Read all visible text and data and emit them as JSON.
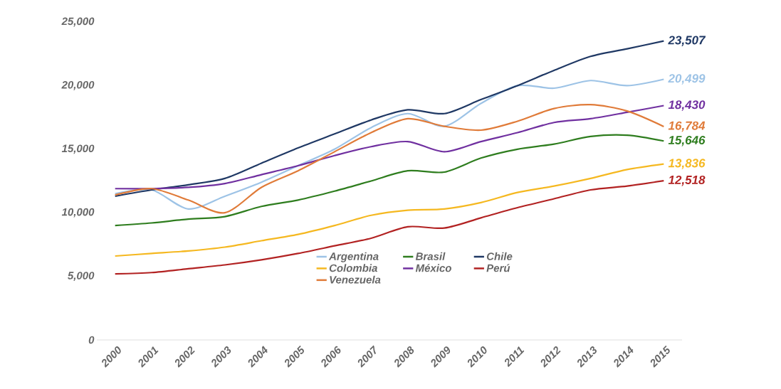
{
  "chart_data": {
    "type": "line",
    "categories": [
      "2000",
      "2001",
      "2002",
      "2003",
      "2004",
      "2005",
      "2006",
      "2007",
      "2008",
      "2009",
      "2010",
      "2011",
      "2012",
      "2013",
      "2014",
      "2015"
    ],
    "series": [
      {
        "name": "Argentina",
        "color": "#9dc3e6",
        "values": [
          11500,
          11800,
          10300,
          11300,
          12400,
          13700,
          15000,
          16700,
          17800,
          16800,
          18600,
          20000,
          19800,
          20400,
          20000,
          20499
        ],
        "value_labels": [
          null,
          null,
          null,
          null,
          null,
          null,
          null,
          null,
          null,
          null,
          null,
          null,
          null,
          null,
          null,
          "20,499"
        ]
      },
      {
        "name": "Brasil",
        "color": "#2e7d1e",
        "values": [
          9000,
          9200,
          9500,
          9700,
          10500,
          11000,
          11700,
          12500,
          13300,
          13200,
          14300,
          15000,
          15400,
          16000,
          16100,
          15646
        ],
        "value_labels": [
          null,
          null,
          null,
          null,
          null,
          null,
          null,
          null,
          null,
          null,
          null,
          null,
          null,
          null,
          null,
          "15,646"
        ]
      },
      {
        "name": "Chile",
        "color": "#1f3864",
        "values": [
          11300,
          11800,
          12200,
          12700,
          13900,
          15100,
          16200,
          17300,
          18100,
          17800,
          18900,
          20000,
          21200,
          22300,
          22900,
          23507
        ],
        "value_labels": [
          null,
          null,
          null,
          null,
          null,
          null,
          null,
          null,
          null,
          null,
          null,
          null,
          null,
          null,
          null,
          "23,507"
        ]
      },
      {
        "name": "Colombia",
        "color": "#f5b820",
        "values": [
          6600,
          6800,
          7000,
          7300,
          7800,
          8300,
          9000,
          9800,
          10200,
          10300,
          10800,
          11600,
          12100,
          12700,
          13400,
          13836
        ],
        "value_labels": [
          null,
          null,
          null,
          null,
          null,
          null,
          null,
          null,
          null,
          null,
          null,
          null,
          null,
          null,
          null,
          "13,836"
        ]
      },
      {
        "name": "México",
        "color": "#7030a0",
        "values": [
          11900,
          11900,
          12000,
          12300,
          13000,
          13700,
          14500,
          15200,
          15600,
          14800,
          15600,
          16300,
          17100,
          17400,
          17900,
          18430
        ],
        "value_labels": [
          null,
          null,
          null,
          null,
          null,
          null,
          null,
          null,
          null,
          null,
          null,
          null,
          null,
          null,
          null,
          "18,430"
        ]
      },
      {
        "name": "Perú",
        "color": "#b22222",
        "values": [
          5200,
          5300,
          5600,
          5900,
          6300,
          6800,
          7400,
          8000,
          8900,
          8800,
          9600,
          10400,
          11100,
          11800,
          12100,
          12518
        ],
        "value_labels": [
          null,
          null,
          null,
          null,
          null,
          null,
          null,
          null,
          null,
          null,
          null,
          null,
          null,
          null,
          null,
          "12,518"
        ]
      },
      {
        "name": "Venezuela",
        "color": "#e07b39",
        "values": [
          11400,
          11900,
          11000,
          10000,
          12000,
          13300,
          14800,
          16300,
          17400,
          16800,
          16500,
          17200,
          18200,
          18500,
          18000,
          16784
        ],
        "value_labels": [
          null,
          null,
          null,
          null,
          null,
          null,
          null,
          null,
          null,
          null,
          null,
          null,
          null,
          null,
          null,
          "16,784"
        ]
      }
    ],
    "ylim": [
      0,
      25000
    ],
    "yticks": [
      {
        "value": 0,
        "label": "0"
      },
      {
        "value": 5000,
        "label": "5,000"
      },
      {
        "value": 10000,
        "label": "10,000"
      },
      {
        "value": 15000,
        "label": "15,000"
      },
      {
        "value": 20000,
        "label": "20,000"
      },
      {
        "value": 25000,
        "label": "25,000"
      }
    ],
    "legend": "bottom",
    "marker": "none",
    "line_style": "solid"
  }
}
